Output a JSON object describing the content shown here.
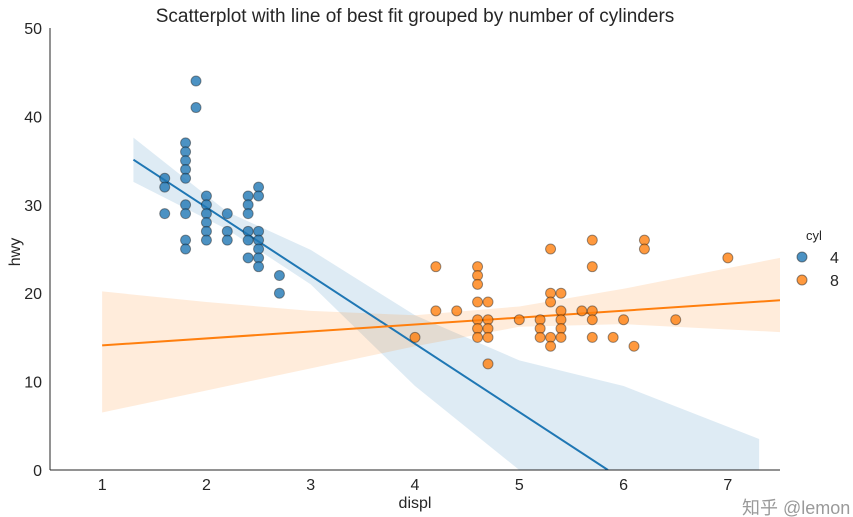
{
  "chart_data": {
    "type": "scatter",
    "title": "Scatterplot with line of best fit grouped by number of cylinders",
    "xlabel": "displ",
    "ylabel": "hwy",
    "xlim": [
      0.5,
      7.5
    ],
    "ylim": [
      0,
      50
    ],
    "xticks": [
      "1",
      "2",
      "3",
      "4",
      "5",
      "6",
      "7"
    ],
    "yticks": [
      "0",
      "10",
      "20",
      "30",
      "40",
      "50"
    ],
    "grid": false,
    "legend": {
      "title": "cyl",
      "placement": "right",
      "entries": [
        "4",
        "8"
      ]
    },
    "series": [
      {
        "name": "4",
        "color": "#1f77b4",
        "points": [
          [
            1.9,
            44
          ],
          [
            1.9,
            41
          ],
          [
            1.8,
            37
          ],
          [
            1.8,
            36
          ],
          [
            1.8,
            35
          ],
          [
            1.8,
            34
          ],
          [
            1.8,
            33
          ],
          [
            1.8,
            30
          ],
          [
            1.8,
            29
          ],
          [
            1.8,
            26
          ],
          [
            1.8,
            25
          ],
          [
            1.6,
            33
          ],
          [
            1.6,
            32
          ],
          [
            1.6,
            29
          ],
          [
            2.0,
            31
          ],
          [
            2.0,
            30
          ],
          [
            2.0,
            29
          ],
          [
            2.0,
            28
          ],
          [
            2.0,
            27
          ],
          [
            2.0,
            26
          ],
          [
            2.2,
            29
          ],
          [
            2.2,
            27
          ],
          [
            2.2,
            26
          ],
          [
            2.4,
            31
          ],
          [
            2.4,
            30
          ],
          [
            2.4,
            29
          ],
          [
            2.4,
            27
          ],
          [
            2.4,
            26
          ],
          [
            2.4,
            24
          ],
          [
            2.5,
            32
          ],
          [
            2.5,
            31
          ],
          [
            2.5,
            27
          ],
          [
            2.5,
            26
          ],
          [
            2.5,
            25
          ],
          [
            2.5,
            24
          ],
          [
            2.5,
            23
          ],
          [
            2.7,
            22
          ],
          [
            2.7,
            20
          ]
        ],
        "fit": {
          "x": [
            1.3,
            5.85
          ],
          "y": [
            35.1,
            0
          ]
        },
        "ci": {
          "x": [
            1.3,
            2.2,
            3,
            4,
            5,
            6,
            7.3
          ],
          "lower": [
            32.6,
            27.2,
            21.0,
            9.5,
            0,
            -16,
            -25.7
          ],
          "upper": [
            37.6,
            29.2,
            24.9,
            17.5,
            12.4,
            9.5,
            3.5
          ]
        }
      },
      {
        "name": "8",
        "color": "#ff7f0e",
        "points": [
          [
            4.2,
            23
          ],
          [
            4.2,
            18
          ],
          [
            4.0,
            15
          ],
          [
            4.4,
            18
          ],
          [
            4.6,
            23
          ],
          [
            4.6,
            22
          ],
          [
            4.6,
            21
          ],
          [
            4.6,
            19
          ],
          [
            4.6,
            17
          ],
          [
            4.6,
            16
          ],
          [
            4.6,
            15
          ],
          [
            4.7,
            19
          ],
          [
            4.7,
            17
          ],
          [
            4.7,
            16
          ],
          [
            4.7,
            15
          ],
          [
            4.7,
            12
          ],
          [
            5.0,
            17
          ],
          [
            5.2,
            17
          ],
          [
            5.2,
            16
          ],
          [
            5.2,
            15
          ],
          [
            5.3,
            25
          ],
          [
            5.3,
            20
          ],
          [
            5.3,
            19
          ],
          [
            5.3,
            15
          ],
          [
            5.3,
            14
          ],
          [
            5.4,
            20
          ],
          [
            5.4,
            18
          ],
          [
            5.4,
            17
          ],
          [
            5.4,
            16
          ],
          [
            5.4,
            15
          ],
          [
            5.6,
            18
          ],
          [
            5.7,
            26
          ],
          [
            5.7,
            23
          ],
          [
            5.7,
            18
          ],
          [
            5.7,
            17
          ],
          [
            5.7,
            15
          ],
          [
            5.9,
            15
          ],
          [
            6.0,
            17
          ],
          [
            6.1,
            14
          ],
          [
            6.2,
            26
          ],
          [
            6.2,
            25
          ],
          [
            6.5,
            17
          ],
          [
            7.0,
            24
          ]
        ],
        "fit": {
          "x": [
            1.0,
            7.5
          ],
          "y": [
            14.1,
            19.2
          ]
        },
        "ci": {
          "x": [
            1.0,
            2,
            3,
            4,
            5,
            6,
            7.5
          ],
          "lower": [
            6.5,
            9.0,
            11.5,
            14.0,
            16.2,
            16.5,
            15.6
          ],
          "upper": [
            20.2,
            19.0,
            18.0,
            17.5,
            18.5,
            20.5,
            24.0
          ]
        }
      }
    ]
  },
  "watermark": "知乎 @lemon"
}
